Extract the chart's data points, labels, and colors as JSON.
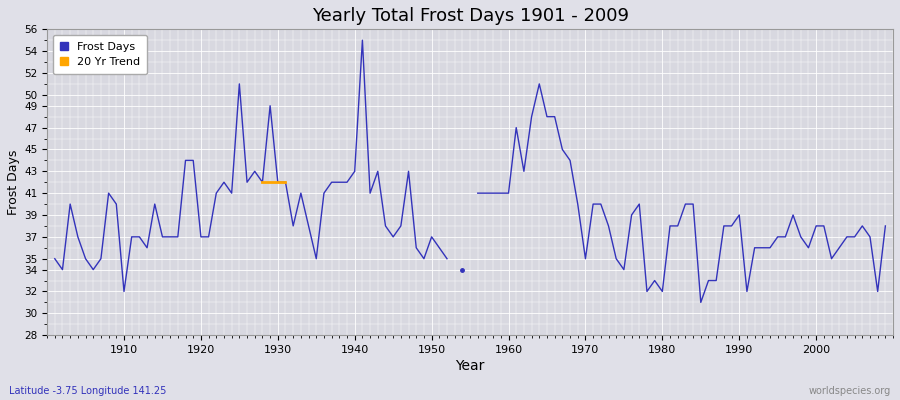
{
  "title": "Yearly Total Frost Days 1901 - 2009",
  "xlabel": "Year",
  "ylabel": "Frost Days",
  "ylim": [
    28,
    56
  ],
  "yticks": [
    28,
    30,
    32,
    34,
    35,
    37,
    39,
    41,
    43,
    45,
    47,
    49,
    50,
    52,
    54,
    56
  ],
  "subtitle_left": "Latitude -3.75 Longitude 141.25",
  "subtitle_right": "worldspecies.org",
  "line_color": "#3333bb",
  "trend_color": "#FFA500",
  "fig_bg_color": "#e0e0e8",
  "plot_bg_color": "#d8d8e0",
  "legend_label_frost": "Frost Days",
  "legend_label_trend": "20 Yr Trend",
  "segment1_years": [
    1901,
    1902,
    1903,
    1904,
    1905,
    1906,
    1907,
    1908,
    1909,
    1910,
    1911,
    1912,
    1913,
    1914,
    1915,
    1916,
    1917,
    1918,
    1919,
    1920,
    1921,
    1922,
    1923,
    1924,
    1925,
    1926,
    1927,
    1928,
    1929,
    1930,
    1931,
    1932,
    1933,
    1934,
    1935,
    1936,
    1937,
    1938,
    1939,
    1940,
    1941,
    1942,
    1943,
    1944,
    1945,
    1946,
    1947,
    1948,
    1949,
    1950,
    1951,
    1952
  ],
  "segment1_values": [
    35,
    34,
    40,
    37,
    35,
    34,
    35,
    41,
    40,
    32,
    37,
    37,
    36,
    40,
    37,
    37,
    37,
    44,
    44,
    37,
    37,
    41,
    42,
    41,
    51,
    42,
    43,
    42,
    49,
    42,
    42,
    38,
    41,
    38,
    35,
    41,
    42,
    42,
    42,
    43,
    55,
    41,
    43,
    38,
    37,
    38,
    43,
    36,
    35,
    37,
    36,
    35
  ],
  "isolated_year": [
    1954
  ],
  "isolated_value": [
    34
  ],
  "segment2_years": [
    1956,
    1957,
    1958,
    1959,
    1960,
    1961,
    1962,
    1963,
    1964,
    1965,
    1966,
    1967,
    1968,
    1969,
    1970,
    1971,
    1972,
    1973,
    1974,
    1975,
    1976,
    1977,
    1978,
    1979,
    1980,
    1981,
    1982,
    1983,
    1984,
    1985,
    1986,
    1987,
    1988,
    1989,
    1990,
    1991,
    1992,
    1993,
    1994,
    1995,
    1996,
    1997,
    1998,
    1999,
    2000,
    2001,
    2002,
    2003,
    2004,
    2005,
    2006,
    2007,
    2008,
    2009
  ],
  "segment2_values": [
    41,
    41,
    41,
    41,
    41,
    47,
    43,
    48,
    51,
    48,
    48,
    45,
    44,
    40,
    35,
    40,
    40,
    38,
    35,
    34,
    39,
    40,
    32,
    33,
    32,
    38,
    38,
    40,
    40,
    31,
    33,
    33,
    38,
    38,
    39,
    32,
    36,
    36,
    36,
    37,
    37,
    39,
    37,
    36,
    38,
    38,
    35,
    36,
    37,
    37,
    38,
    37,
    32,
    38
  ],
  "trend_years": [
    1928,
    1929,
    1930,
    1931
  ],
  "trend_values": [
    42,
    42,
    42,
    42
  ]
}
